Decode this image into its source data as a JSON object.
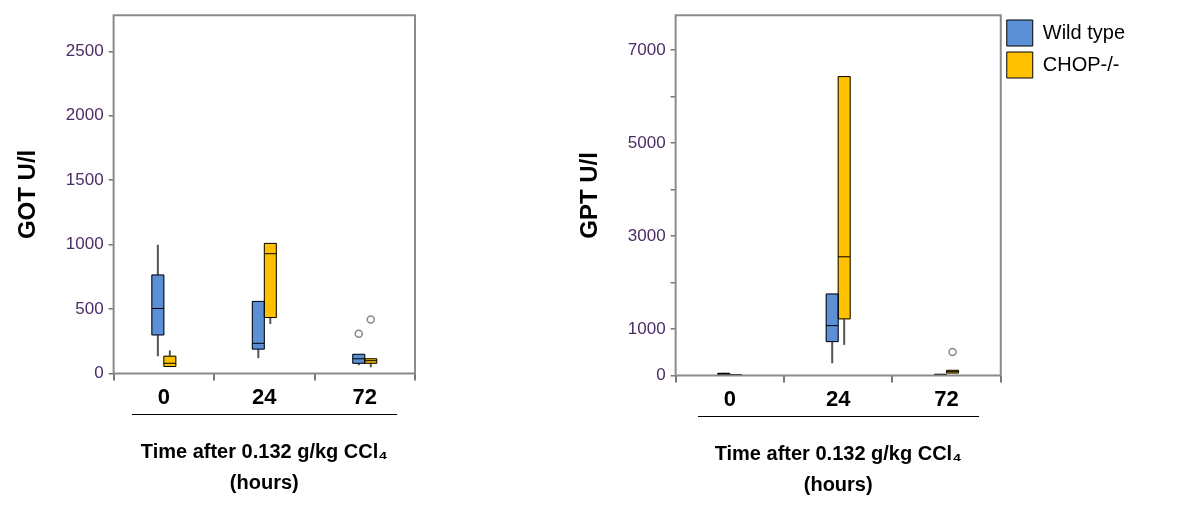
{
  "chart_data": [
    {
      "type": "box",
      "categories": [
        "0",
        "24",
        "72"
      ],
      "ylabel": "GOT U/l",
      "xlabel": "Time after 0.132 g/kg CCl₄\n(hours)",
      "ylim": [
        0,
        2780
      ],
      "yticks": [
        0,
        500,
        1000,
        1500,
        2000,
        2500
      ],
      "grid": false,
      "legend": false,
      "series": [
        {
          "color": "#5b8fd6",
          "boxes": [
            {
              "low": 135,
              "q1": 300,
              "median": 505,
              "q3": 765,
              "high": 1000
            },
            {
              "low": 120,
              "q1": 190,
              "median": 235,
              "q3": 560,
              "high": 560
            },
            {
              "low": 65,
              "q1": 80,
              "median": 115,
              "q3": 150,
              "high": 150,
              "outliers": [
                310
              ]
            }
          ]
        },
        {
          "color": "#ffc000",
          "boxes": [
            {
              "low": 55,
              "q1": 55,
              "median": 80,
              "q3": 135,
              "high": 180
            },
            {
              "low": 385,
              "q1": 435,
              "median": 930,
              "q3": 1010,
              "high": 1010
            },
            {
              "low": 50,
              "q1": 80,
              "median": 100,
              "q3": 115,
              "high": 120,
              "outliers": [
                420
              ]
            }
          ]
        }
      ]
    },
    {
      "type": "box",
      "categories": [
        "0",
        "24",
        "72"
      ],
      "ylabel": "GPT U/l",
      "xlabel": "Time after 0.132 g/kg CCl₄\n(hours)",
      "ylim": [
        0,
        7750
      ],
      "yticks": [
        0,
        1000,
        {
          "value": 2000,
          "label": null
        },
        3000,
        {
          "value": 4000,
          "label": null
        },
        5000,
        {
          "value": 6000,
          "label": null
        },
        7000
      ],
      "grid": false,
      "legend": "top right",
      "series": [
        {
          "name": "Wild type",
          "color": "#5b8fd6",
          "boxes": [
            {
              "low": 0,
              "q1": 20,
              "median": 40,
              "q3": 50,
              "high": 60
            },
            {
              "low": 265,
              "q1": 730,
              "median": 1075,
              "q3": 1755,
              "high": 1755
            },
            {
              "low": 10,
              "q1": 15,
              "median": 20,
              "q3": 30,
              "high": 30
            }
          ]
        },
        {
          "name": "CHOP-/-",
          "color": "#ffc000",
          "boxes": [
            {
              "low": 0,
              "q1": 5,
              "median": 10,
              "q3": 20,
              "high": 20
            },
            {
              "low": 660,
              "q1": 1220,
              "median": 2555,
              "q3": 6430,
              "high": 6430
            },
            {
              "low": 55,
              "q1": 55,
              "median": 85,
              "q3": 115,
              "high": 115,
              "outliers": [
                505
              ]
            }
          ]
        }
      ]
    }
  ]
}
